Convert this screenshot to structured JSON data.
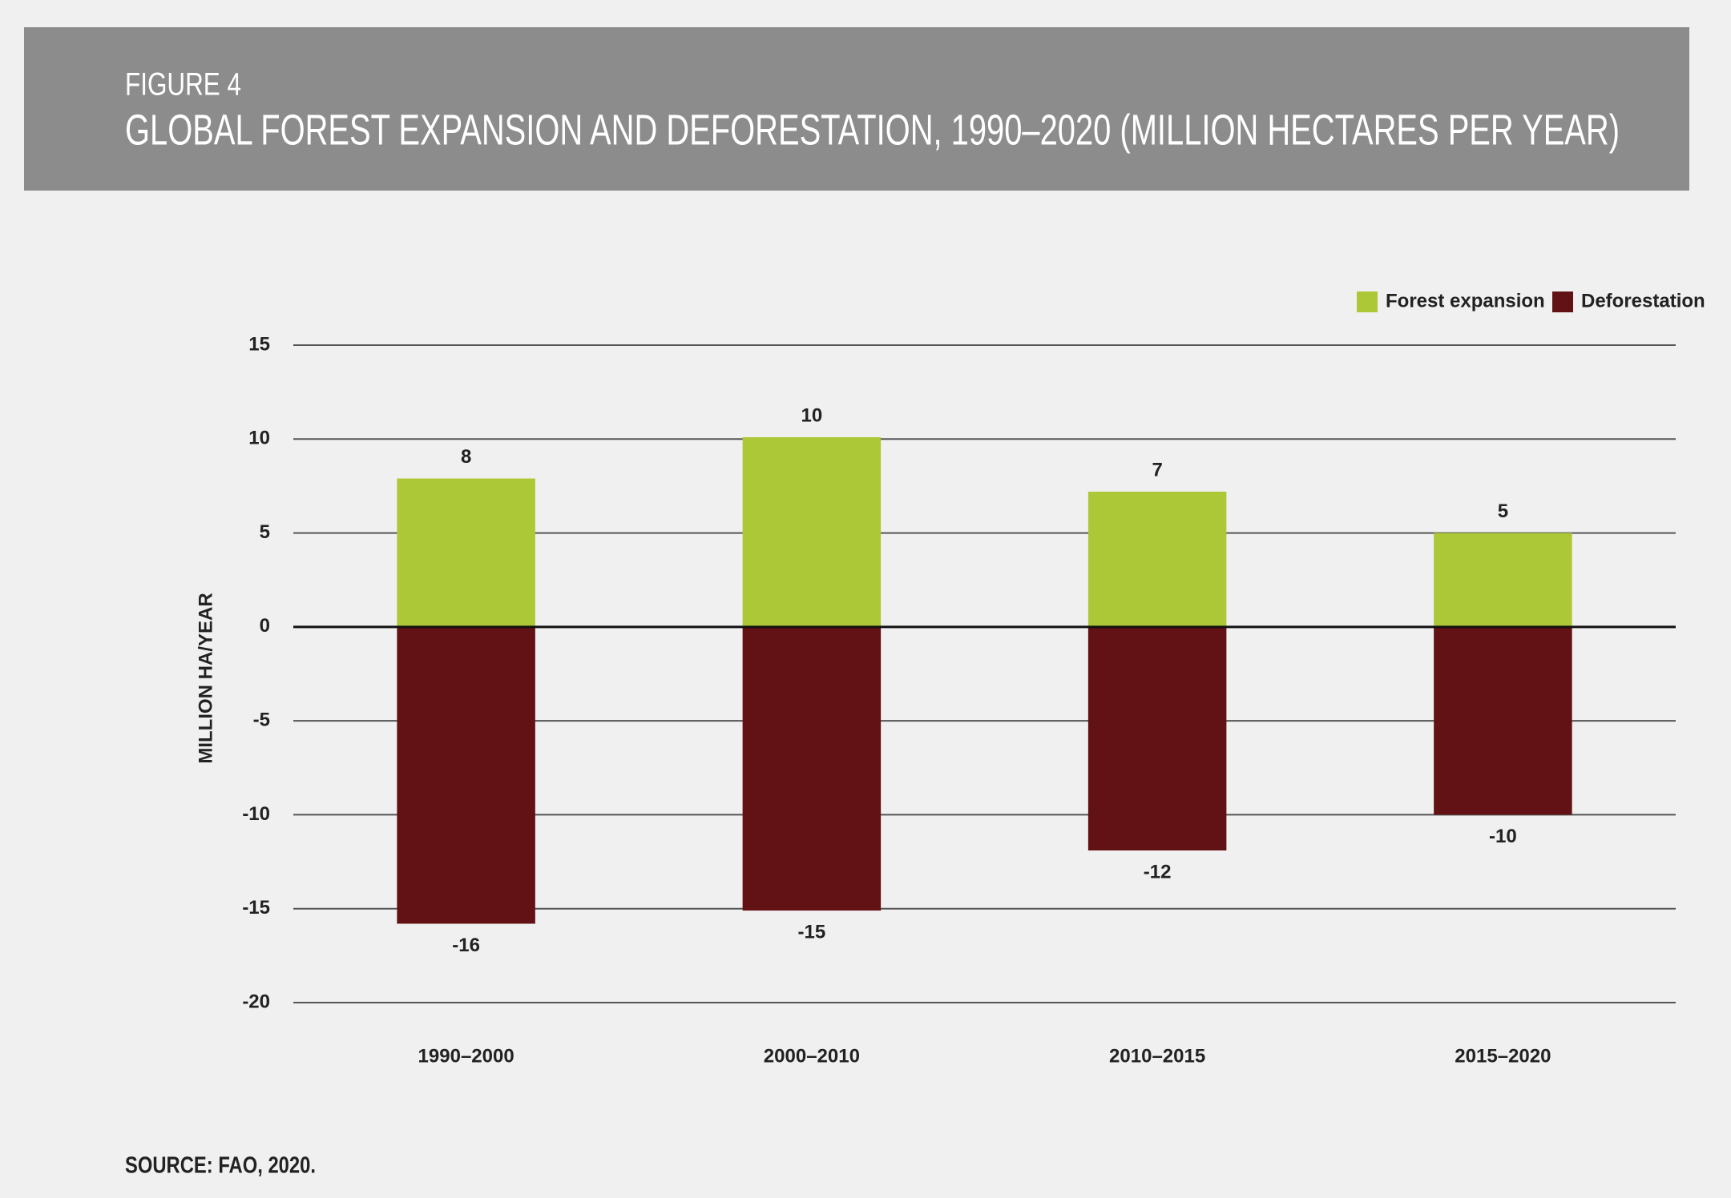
{
  "header": {
    "figure": "FIGURE 4",
    "title": "GLOBAL FOREST EXPANSION AND DEFORESTATION, 1990–2020 (MILLION HECTARES PER YEAR)"
  },
  "chart_data": {
    "type": "bar",
    "y_label": "MILLION HA/YEAR",
    "categories": [
      "1990–2000",
      "2000–2010",
      "2010–2015",
      "2015–2020"
    ],
    "series": [
      {
        "name": "Forest expansion",
        "color": "#adc837",
        "values": [
          7.9,
          10.1,
          7.2,
          5.0
        ],
        "value_labels": [
          "8",
          "10",
          "7",
          "5"
        ]
      },
      {
        "name": "Deforestation",
        "color": "#621214",
        "values": [
          -15.8,
          -15.1,
          -11.9,
          -10.0
        ],
        "value_labels": [
          "-16",
          "-15",
          "-12",
          "-10"
        ]
      }
    ],
    "ylim": [
      -20,
      15
    ],
    "yticks": [
      -20,
      -15,
      -10,
      -5,
      0,
      5,
      10,
      15
    ],
    "grid": true,
    "legend": "top-right"
  },
  "source": "SOURCE: FAO, 2020."
}
